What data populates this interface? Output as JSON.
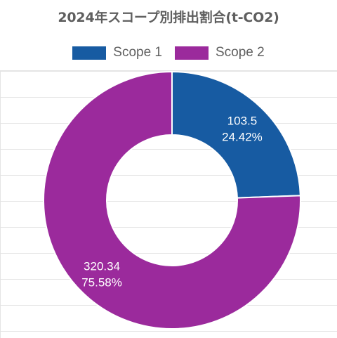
{
  "chart_data": {
    "type": "donut",
    "title": "2024年スコープ別排出割合(t-CO2)",
    "legend_position": "top",
    "categories": [
      "Scope 1",
      "Scope 2"
    ],
    "values": [
      103.5,
      320.34
    ],
    "value_labels": [
      "103.5",
      "320.34"
    ],
    "percent_labels": [
      "24.42%",
      "75.58%"
    ],
    "colors": [
      "#175ba2",
      "#9b2a9c"
    ],
    "grid": true
  }
}
